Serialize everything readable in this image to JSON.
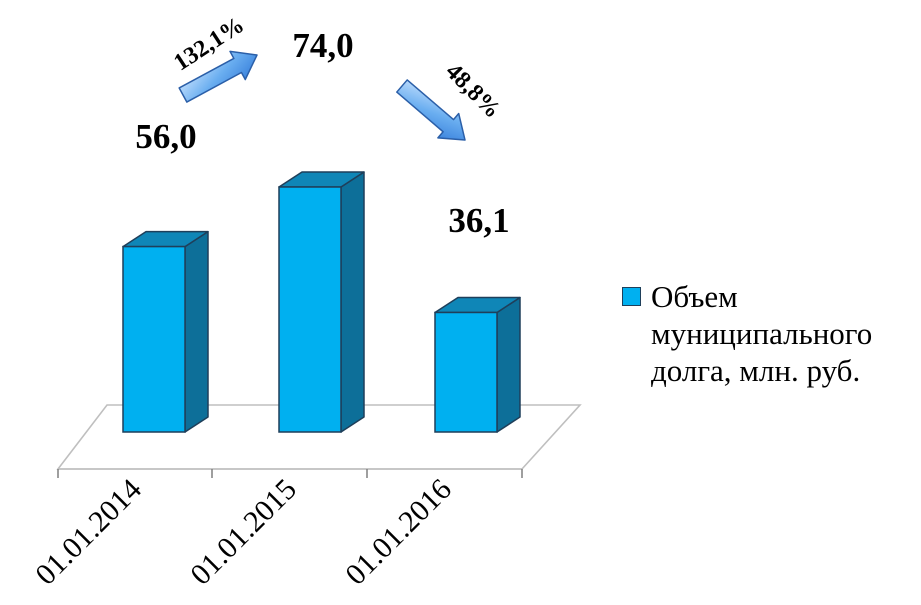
{
  "chart_data": {
    "type": "bar",
    "categories": [
      "01.01.2014",
      "01.01.2015",
      "01.01.2016"
    ],
    "series": [
      {
        "name": "Объем муниципального долга, млн. руб.",
        "values": [
          56.0,
          74.0,
          36.1
        ]
      }
    ],
    "value_labels": [
      "56,0",
      "74,0",
      "36,1"
    ],
    "ylim": [
      0,
      80
    ],
    "grid": false,
    "legend_position": "right",
    "annotations": [
      {
        "text": "132,1%",
        "from": "01.01.2014",
        "to": "01.01.2015",
        "direction": "up"
      },
      {
        "text": "48,8%",
        "from": "01.01.2015",
        "to": "01.01.2016",
        "direction": "down"
      }
    ],
    "colors": {
      "bar_front": "#00b0f0",
      "bar_side": "#0d6f99",
      "bar_top": "#0f86b7",
      "outline": "#1f3f5a",
      "arrow": "#6aaef0"
    }
  }
}
